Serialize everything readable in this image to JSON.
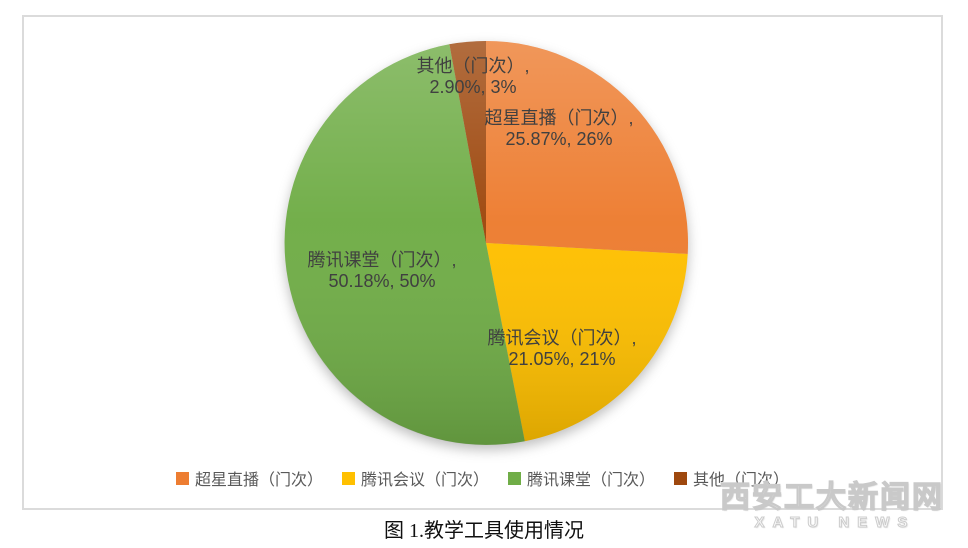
{
  "chart_data": {
    "type": "pie",
    "start_angle_deg": 0,
    "direction": "clockwise",
    "legend_position": "bottom",
    "slices": [
      {
        "name": "超星直播（门次）",
        "percent": 25.87,
        "rounded_percent": "26%",
        "color": "#ED7D31",
        "label_lines": [
          "超星直播（门次）,",
          "25.87%, 26%"
        ]
      },
      {
        "name": "腾讯会议（门次）",
        "percent": 21.05,
        "rounded_percent": "21%",
        "color": "#FFC000",
        "label_lines": [
          "腾讯会议（门次）,",
          "21.05%, 21%"
        ]
      },
      {
        "name": "腾讯课堂（门次）",
        "percent": 50.18,
        "rounded_percent": "50%",
        "color": "#70AD47",
        "label_lines": [
          "腾讯课堂（门次）,",
          "50.18%, 50%"
        ]
      },
      {
        "name": "其他（门次）",
        "percent": 2.9,
        "rounded_percent": "3%",
        "color": "#9E480E",
        "label_lines": [
          "其他（门次）,",
          "2.90%, 3%"
        ]
      }
    ]
  },
  "caption": "图 1.教学工具使用情况",
  "watermark": {
    "line1": "西安工大新闻网",
    "line2": "XATU NEWS"
  }
}
